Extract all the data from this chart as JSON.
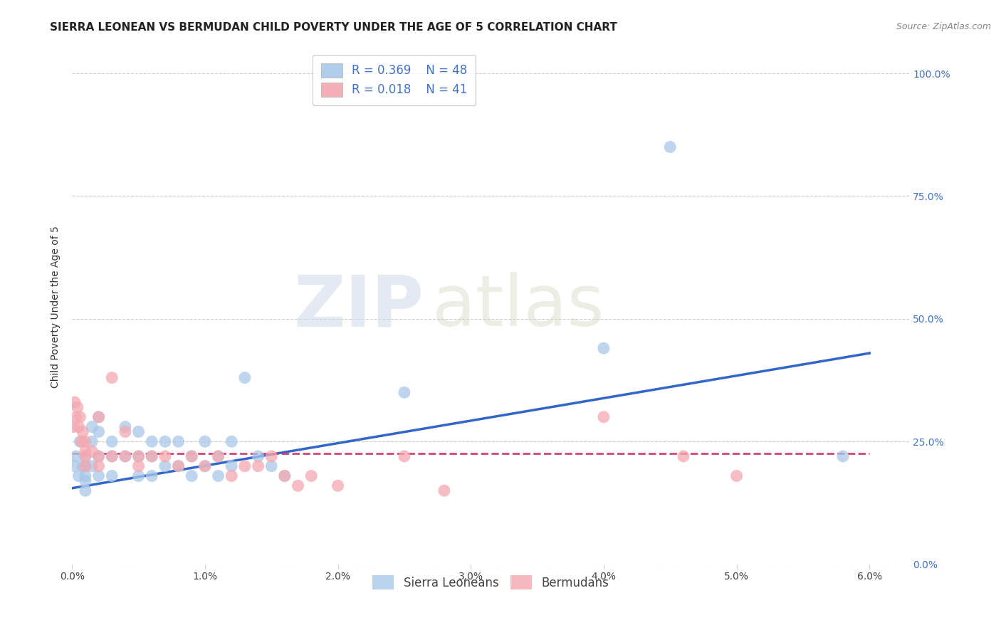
{
  "title": "SIERRA LEONEAN VS BERMUDAN CHILD POVERTY UNDER THE AGE OF 5 CORRELATION CHART",
  "source": "Source: ZipAtlas.com",
  "ylabel_label": "Child Poverty Under the Age of 5",
  "legend_label1": "Sierra Leoneans",
  "legend_label2": "Bermudans",
  "R1": "0.369",
  "N1": "48",
  "R2": "0.018",
  "N2": "41",
  "color_sl": "#a8c8e8",
  "color_bm": "#f4a8b0",
  "line_color_sl": "#3366cc",
  "line_color_bm": "#cc3366",
  "watermark_zip": "ZIP",
  "watermark_atlas": "atlas",
  "background_color": "#ffffff",
  "grid_color": "#cccccc",
  "sl_x": [
    0.0002,
    0.0003,
    0.0005,
    0.0006,
    0.0008,
    0.001,
    0.001,
    0.001,
    0.001,
    0.001,
    0.0015,
    0.0015,
    0.0015,
    0.002,
    0.002,
    0.002,
    0.002,
    0.003,
    0.003,
    0.003,
    0.004,
    0.004,
    0.005,
    0.005,
    0.005,
    0.006,
    0.006,
    0.006,
    0.007,
    0.007,
    0.008,
    0.008,
    0.009,
    0.009,
    0.01,
    0.01,
    0.011,
    0.011,
    0.012,
    0.012,
    0.013,
    0.014,
    0.015,
    0.016,
    0.025,
    0.04,
    0.045,
    0.058
  ],
  "sl_y": [
    0.2,
    0.22,
    0.18,
    0.25,
    0.2,
    0.22,
    0.18,
    0.2,
    0.17,
    0.15,
    0.28,
    0.25,
    0.2,
    0.3,
    0.27,
    0.22,
    0.18,
    0.25,
    0.22,
    0.18,
    0.28,
    0.22,
    0.27,
    0.22,
    0.18,
    0.25,
    0.22,
    0.18,
    0.25,
    0.2,
    0.25,
    0.2,
    0.22,
    0.18,
    0.25,
    0.2,
    0.22,
    0.18,
    0.25,
    0.2,
    0.38,
    0.22,
    0.2,
    0.18,
    0.35,
    0.44,
    0.85,
    0.22
  ],
  "bm_x": [
    0.0001,
    0.0002,
    0.0003,
    0.0004,
    0.0005,
    0.0006,
    0.0007,
    0.0008,
    0.001,
    0.001,
    0.001,
    0.001,
    0.0015,
    0.002,
    0.002,
    0.002,
    0.003,
    0.003,
    0.004,
    0.004,
    0.005,
    0.005,
    0.006,
    0.007,
    0.008,
    0.009,
    0.01,
    0.011,
    0.012,
    0.013,
    0.014,
    0.015,
    0.016,
    0.017,
    0.018,
    0.02,
    0.025,
    0.028,
    0.04,
    0.046,
    0.05
  ],
  "bm_y": [
    0.28,
    0.33,
    0.3,
    0.32,
    0.28,
    0.3,
    0.25,
    0.27,
    0.23,
    0.25,
    0.2,
    0.22,
    0.23,
    0.3,
    0.22,
    0.2,
    0.38,
    0.22,
    0.27,
    0.22,
    0.22,
    0.2,
    0.22,
    0.22,
    0.2,
    0.22,
    0.2,
    0.22,
    0.18,
    0.2,
    0.2,
    0.22,
    0.18,
    0.16,
    0.18,
    0.16,
    0.22,
    0.15,
    0.3,
    0.22,
    0.18
  ],
  "sl_line_x0": 0.0,
  "sl_line_y0": 0.155,
  "sl_line_x1": 0.06,
  "sl_line_y1": 0.43,
  "bm_line_x0": 0.0,
  "bm_line_y0": 0.225,
  "bm_line_x1": 0.06,
  "bm_line_y1": 0.225,
  "xlim": [
    0.0,
    0.063
  ],
  "ylim": [
    0.0,
    1.05
  ],
  "title_fontsize": 11,
  "axis_label_fontsize": 10,
  "tick_fontsize": 10,
  "legend_fontsize": 12
}
